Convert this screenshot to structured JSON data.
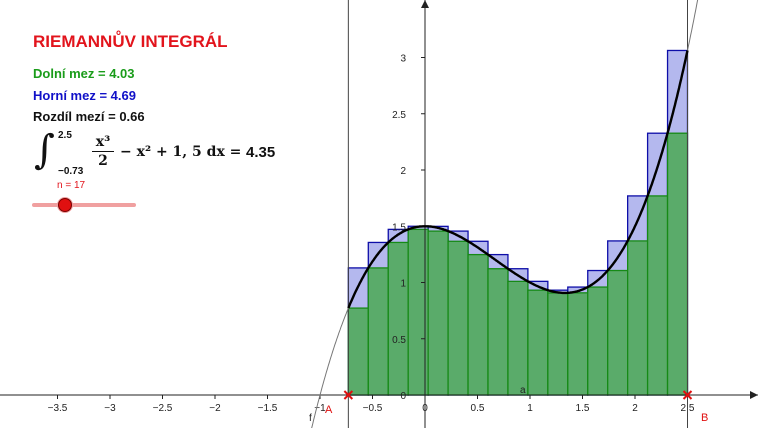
{
  "title": "RIEMANNŮV INTEGRÁL",
  "lower_sum_label": "Dolní mez = 4.03",
  "upper_sum_label": "Horní mez = 4.69",
  "difference_label": "Rozdíl mezí = 0.66",
  "integral": {
    "lower_limit": "−0.73",
    "upper_limit": "2.5",
    "numerator": "x³",
    "denominator": "2",
    "rest": "− x² + 1, 5 dx =",
    "result": "4.35"
  },
  "slider": {
    "label": "n = 17",
    "n": 17,
    "min": 1,
    "max": 100
  },
  "colors": {
    "title": "#e2141c",
    "lower": "#1a9c1a",
    "upper": "#1010c8",
    "difference": "#111111",
    "lower_fill": "#5aab6a",
    "upper_fill": "#b4b8ee"
  },
  "points": {
    "A": "A",
    "B": "B"
  },
  "labels": {
    "function": "f",
    "variable": "a"
  },
  "chart_data": {
    "type": "area",
    "function": "x^3/2 - x^2 + 1.5",
    "interval": [
      -0.73,
      2.5
    ],
    "n": 17,
    "xlim": [
      -3.85,
      3.1
    ],
    "ylim": [
      -0.33,
      3.55
    ],
    "x_ticks": [
      -3.5,
      -3,
      -2.5,
      -2,
      -1.5,
      -1,
      -0.5,
      0,
      0.5,
      1,
      1.5,
      2,
      2.5
    ],
    "y_ticks": [
      0,
      0.5,
      1,
      1.5,
      2,
      2.5,
      3
    ],
    "x_tick_labels": [
      "−3.5",
      "−3",
      "−2.5",
      "−2",
      "−1.5",
      "−1",
      "−0.5",
      "0",
      "0.5",
      "1",
      "1.5",
      "2",
      "2.5"
    ],
    "y_tick_labels": [
      "0",
      "0.5",
      "1",
      "1.5",
      "2",
      "2.5",
      "3"
    ],
    "lower_sum": 4.03,
    "upper_sum": 4.69
  }
}
